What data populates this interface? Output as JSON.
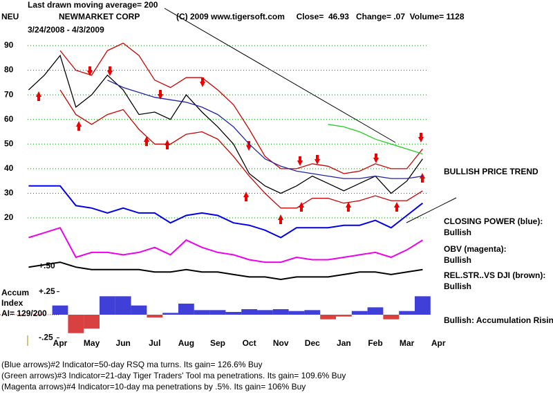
{
  "header": {
    "note": "Last drawn moving average= 200",
    "symbol": "NEU",
    "company": "NEWMARKET CORP",
    "dates": "3/24/2008 - 4/3/2009",
    "info": "(C) 2009 www.tigersoft.com     Close=  46.93   Change= .07  Volume= 1128"
  },
  "chart_data": [
    {
      "type": "line",
      "categories": [
        null,
        null,
        "Apr",
        null,
        "May",
        null,
        "Jun",
        null,
        "Jul",
        null,
        "Aug",
        null,
        "Sep",
        null,
        "Oct",
        null,
        "Nov",
        null,
        "Dec",
        null,
        "Jan",
        null,
        "Feb",
        null,
        "Mar",
        null,
        "Apr"
      ],
      "series": [
        {
          "color": "#000000",
          "values": [
            72,
            78,
            86,
            65,
            70,
            78,
            72,
            62,
            63,
            60,
            70,
            63,
            57,
            50,
            38,
            33,
            30,
            33,
            37,
            34,
            31,
            34,
            37,
            30,
            35,
            44,
            null
          ]
        },
        {
          "color": "#cc0000",
          "values": [
            null,
            null,
            88,
            80,
            78,
            88,
            91,
            86,
            76,
            73,
            77,
            77,
            72,
            66,
            56,
            45,
            40,
            40,
            42,
            41,
            38,
            39,
            42,
            40,
            40,
            48,
            null
          ]
        },
        {
          "color": "#cc0000",
          "values": [
            null,
            null,
            72,
            62,
            58,
            62,
            64,
            56,
            50,
            50,
            54,
            55,
            52,
            45,
            37,
            30,
            24,
            24,
            28,
            28,
            26,
            27,
            29,
            27,
            27,
            31,
            null
          ]
        },
        {
          "color": "#2222aa",
          "values": [
            null,
            null,
            null,
            null,
            null,
            76,
            73,
            71,
            69,
            68,
            67,
            65,
            62,
            57,
            50,
            44,
            41,
            39,
            38,
            37,
            36,
            36,
            37,
            36,
            36,
            37,
            null
          ]
        },
        {
          "color": "#22cc22",
          "values": [
            null,
            null,
            null,
            null,
            null,
            null,
            null,
            null,
            null,
            null,
            null,
            null,
            null,
            null,
            null,
            null,
            null,
            null,
            null,
            58,
            57,
            55,
            52,
            50,
            48,
            46,
            null
          ]
        },
        {
          "color": "#0000ee",
          "values": [
            33,
            33,
            33,
            25,
            24,
            22,
            24,
            22,
            22,
            18,
            21,
            22,
            21,
            18,
            17,
            15,
            12,
            16,
            16,
            16,
            17,
            17,
            19,
            16,
            21,
            26,
            null
          ]
        },
        {
          "color": "#ee00ee",
          "values": [
            12,
            14,
            16,
            4,
            6,
            6,
            5,
            6,
            8,
            5,
            11,
            8,
            6,
            5,
            3,
            2,
            2,
            4,
            3,
            3,
            4,
            5,
            6,
            4,
            7,
            11,
            null
          ]
        },
        {
          "color": "#000000",
          "values": [
            0,
            1,
            2,
            0,
            -1,
            -1,
            -1,
            -1,
            -2,
            -2,
            -1,
            -2,
            -2,
            -3,
            -4,
            -4,
            -5,
            -4,
            -4,
            -4,
            -3,
            -2,
            -2,
            -3,
            -2,
            -1,
            null
          ]
        }
      ],
      "ylim": [
        -5,
        100
      ],
      "yticks": [
        20,
        30,
        40,
        50,
        60,
        70,
        80,
        90
      ],
      "grid": true,
      "grid_color": "#008800",
      "axis_note": "+.50",
      "annotations": [
        "BULLISH PRICE TREND",
        "CLOSING POWER (blue):",
        "Bullish",
        "OBV (magenta):",
        "Bullish",
        "REL.STR..VS DJI (brown):",
        "Bullish",
        "Bullish: Accumulation Rising"
      ]
    },
    {
      "type": "bar",
      "values": [
        null,
        null,
        0.1,
        -0.2,
        -0.15,
        0.2,
        0.2,
        0.1,
        -0.03,
        0.02,
        0.12,
        0.05,
        0.05,
        0.03,
        0.06,
        0.05,
        0.06,
        0.04,
        0.05,
        -0.05,
        -0.02,
        0.04,
        0.08,
        -0.05,
        0.04,
        0.2,
        null
      ],
      "pos_color": "#0000cc",
      "neg_color": "#cc0000",
      "ylim": [
        -0.3,
        0.3
      ],
      "yticks": [
        {
          "value": 0.25,
          "label": "+.25"
        },
        {
          "value": -0.25,
          "label": "-.25"
        }
      ],
      "annotations": [
        "Accum",
        "Index",
        "AI= 129/200"
      ]
    }
  ],
  "notes": [
    "(Blue arrows)#2 Indicator=50-day RSQ ma turns. Its gain= 126.6% Buy",
    "(Green arrows)#3 Indicator=21-day Tiger Traders' Tool ma penetrations. Its gain= 109.6% Buy",
    "(Magenta arrows)#4 Indicator=10-day ma penetrations by .5%. Its gain= 106% Buy"
  ]
}
